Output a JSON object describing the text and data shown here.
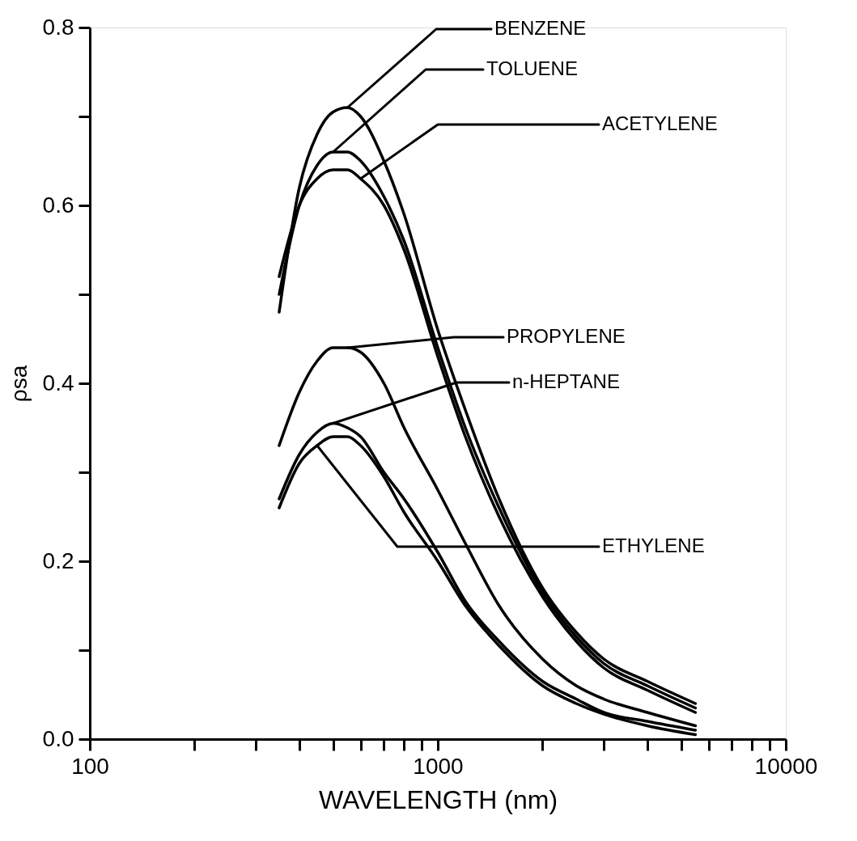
{
  "chart_data": {
    "type": "line",
    "xlabel": "WAVELENGTH (nm)",
    "ylabel": "ρsa",
    "log": "x",
    "xlim": [
      100,
      10000
    ],
    "ylim": [
      0,
      0.8
    ],
    "xticks": [
      100,
      {
        "value": 200,
        "label": null
      },
      {
        "value": 300,
        "label": null
      },
      {
        "value": 400,
        "label": null
      },
      {
        "value": 500,
        "label": null
      },
      {
        "value": 600,
        "label": null
      },
      {
        "value": 700,
        "label": null
      },
      {
        "value": 800,
        "label": null
      },
      {
        "value": 900,
        "label": null
      },
      1000,
      {
        "value": 2000,
        "label": null
      },
      {
        "value": 3000,
        "label": null
      },
      {
        "value": 4000,
        "label": null
      },
      {
        "value": 5000,
        "label": null
      },
      {
        "value": 6000,
        "label": null
      },
      {
        "value": 7000,
        "label": null
      },
      {
        "value": 8000,
        "label": null
      },
      {
        "value": 9000,
        "label": null
      },
      10000
    ],
    "yticks": [
      {
        "value": 0,
        "label": "0.0"
      },
      {
        "value": 0.1,
        "label": null
      },
      0.2,
      {
        "value": 0.3,
        "label": null
      },
      0.4,
      {
        "value": 0.5,
        "label": null
      },
      0.6,
      {
        "value": 0.7,
        "label": null
      },
      0.8
    ],
    "x": [
      350,
      400,
      450,
      500,
      550,
      600,
      700,
      800,
      1000,
      1200,
      1500,
      2000,
      2500,
      3000,
      4000,
      5500
    ],
    "line_style": "solid",
    "marker": "none",
    "annotations": [
      {
        "text": "BENZENE",
        "x": 550,
        "y": 0.71
      },
      {
        "text": "TOLUENE",
        "x": 500,
        "y": 0.66
      },
      {
        "text": "ACETYLENE",
        "x": 600,
        "y": 0.63
      },
      {
        "text": "PROPYLENE",
        "x": 550,
        "y": 0.44
      },
      {
        "text": "n-HEPTANE",
        "x": 500,
        "y": 0.355
      },
      {
        "text": "ETHYLENE",
        "x": 450,
        "y": 0.33
      }
    ],
    "series": [
      {
        "color": "#000000",
        "values": [
          0.48,
          0.62,
          0.68,
          0.705,
          0.71,
          0.7,
          0.65,
          0.59,
          0.46,
          0.37,
          0.27,
          0.17,
          0.12,
          0.09,
          0.065,
          0.04
        ]
      },
      {
        "color": "#000000",
        "values": [
          0.5,
          0.6,
          0.645,
          0.66,
          0.66,
          0.65,
          0.61,
          0.56,
          0.44,
          0.35,
          0.26,
          0.165,
          0.115,
          0.085,
          0.06,
          0.035
        ]
      },
      {
        "color": "#000000",
        "values": [
          0.52,
          0.6,
          0.63,
          0.64,
          0.64,
          0.63,
          0.6,
          0.55,
          0.43,
          0.34,
          0.25,
          0.16,
          0.11,
          0.08,
          0.055,
          0.03
        ]
      },
      {
        "color": "#000000",
        "values": [
          0.33,
          0.39,
          0.425,
          0.44,
          0.44,
          0.435,
          0.4,
          0.35,
          0.28,
          0.22,
          0.15,
          0.09,
          0.06,
          0.045,
          0.03,
          0.015
        ]
      },
      {
        "color": "#000000",
        "values": [
          0.27,
          0.32,
          0.345,
          0.355,
          0.35,
          0.34,
          0.3,
          0.27,
          0.21,
          0.155,
          0.11,
          0.065,
          0.045,
          0.03,
          0.02,
          0.01
        ]
      },
      {
        "color": "#000000",
        "values": [
          0.26,
          0.31,
          0.33,
          0.34,
          0.34,
          0.33,
          0.295,
          0.255,
          0.2,
          0.15,
          0.105,
          0.06,
          0.04,
          0.028,
          0.015,
          0.005
        ]
      }
    ]
  }
}
